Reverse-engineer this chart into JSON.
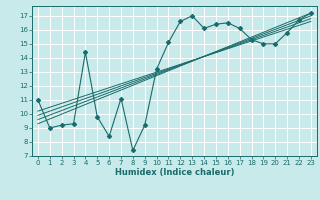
{
  "title": "",
  "xlabel": "Humidex (Indice chaleur)",
  "bg_color": "#c8eaea",
  "grid_color": "#ffffff",
  "line_color": "#1a6b6b",
  "xlim": [
    -0.5,
    23.5
  ],
  "ylim": [
    7,
    17.7
  ],
  "xticks": [
    0,
    1,
    2,
    3,
    4,
    5,
    6,
    7,
    8,
    9,
    10,
    11,
    12,
    13,
    14,
    15,
    16,
    17,
    18,
    19,
    20,
    21,
    22,
    23
  ],
  "yticks": [
    7,
    8,
    9,
    10,
    11,
    12,
    13,
    14,
    15,
    16,
    17
  ],
  "scatter_x": [
    0,
    1,
    2,
    3,
    4,
    5,
    6,
    7,
    8,
    9,
    10,
    11,
    12,
    13,
    14,
    15,
    16,
    17,
    18,
    19,
    20,
    21,
    22,
    23
  ],
  "scatter_y": [
    11.0,
    9.0,
    9.2,
    9.3,
    14.4,
    9.8,
    8.4,
    11.1,
    7.4,
    9.2,
    13.2,
    15.1,
    16.6,
    17.0,
    16.1,
    16.4,
    16.5,
    16.1,
    15.3,
    15.0,
    15.0,
    15.8,
    16.7,
    17.2
  ],
  "reg_lines": [
    {
      "x0": 0,
      "y0": 9.3,
      "x1": 23,
      "y1": 17.2
    },
    {
      "x0": 0,
      "y0": 9.6,
      "x1": 23,
      "y1": 17.0
    },
    {
      "x0": 0,
      "y0": 9.9,
      "x1": 23,
      "y1": 16.8
    },
    {
      "x0": 0,
      "y0": 10.2,
      "x1": 23,
      "y1": 16.6
    }
  ],
  "tick_fontsize": 5.0,
  "xlabel_fontsize": 6.0,
  "marker_size": 4
}
